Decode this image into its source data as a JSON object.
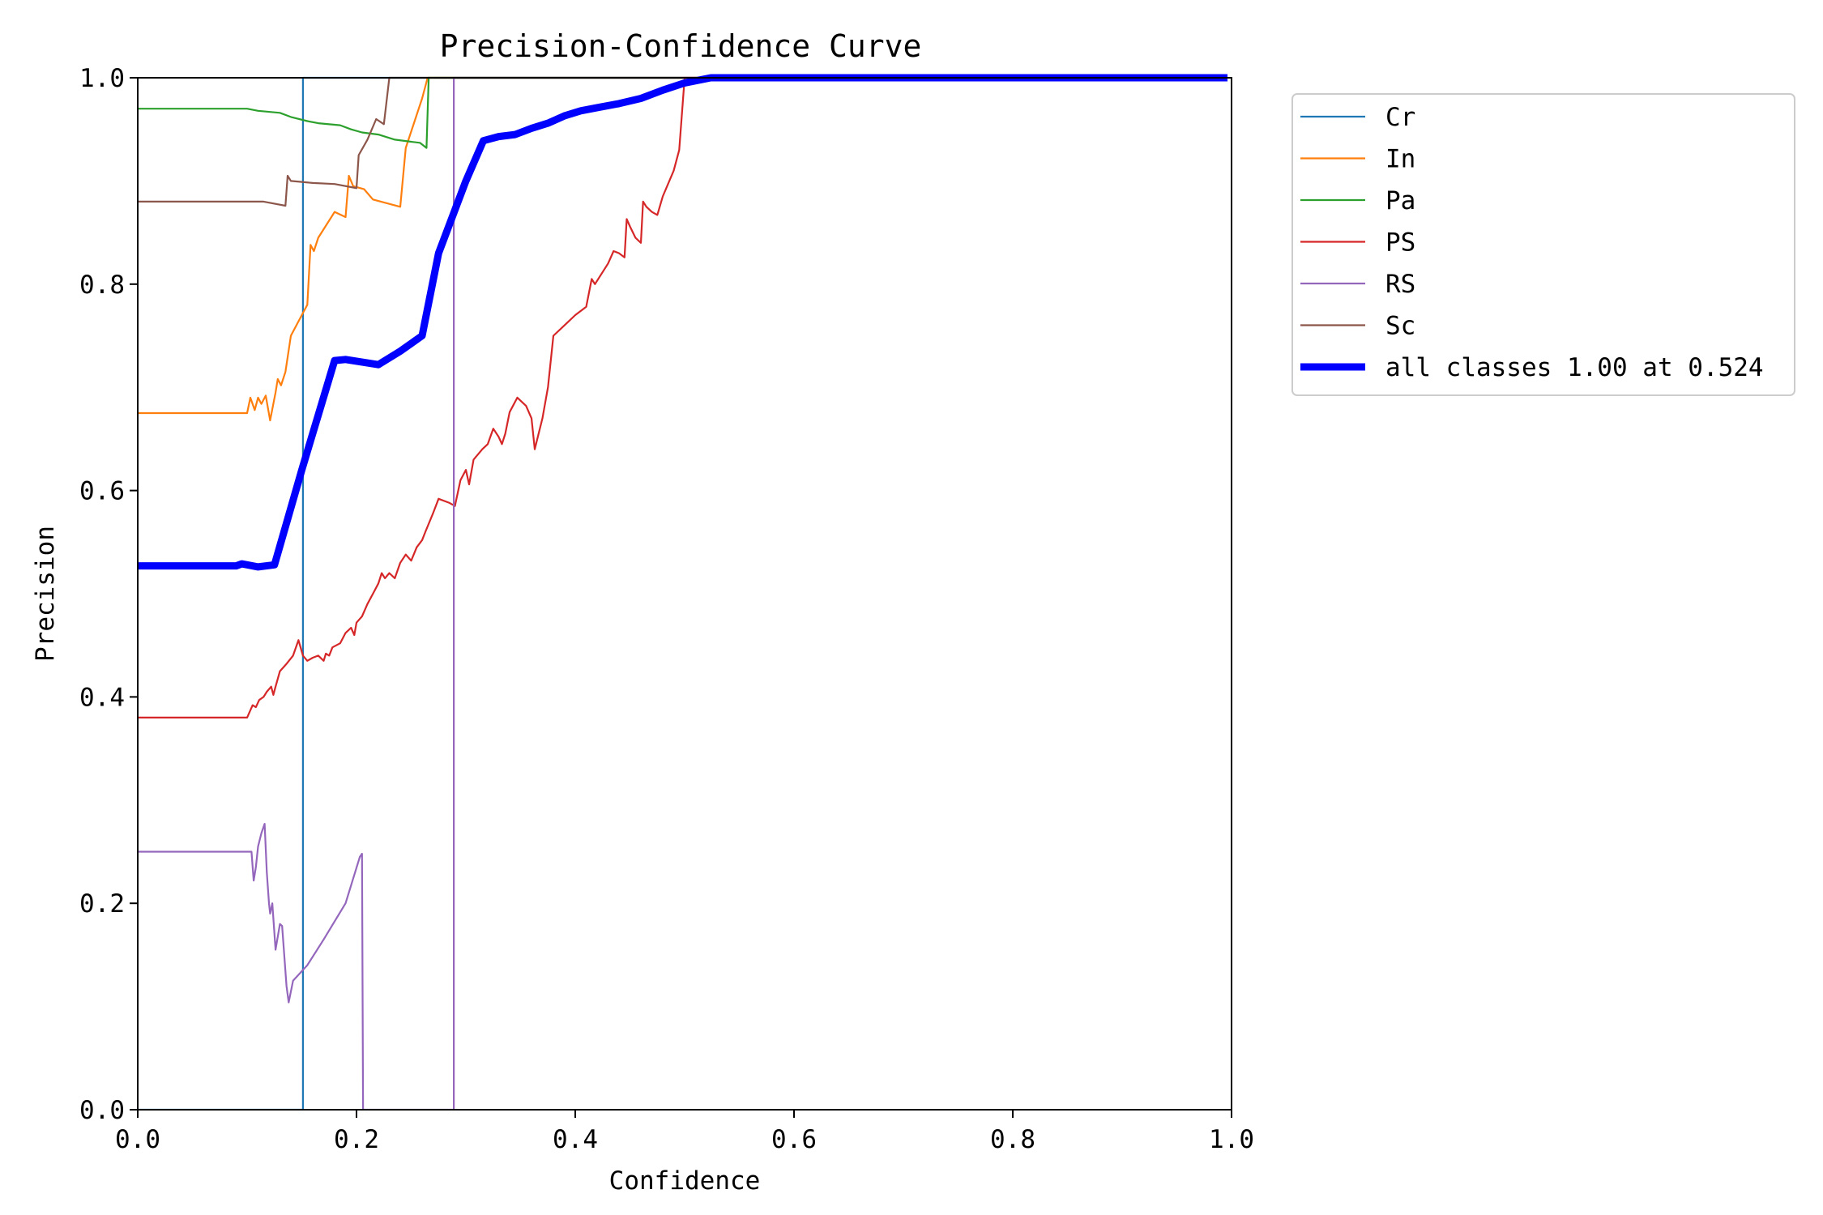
{
  "chart_data": {
    "type": "line",
    "title": "Precision-Confidence Curve",
    "xlabel": "Confidence",
    "ylabel": "Precision",
    "xlim": [
      0,
      1
    ],
    "ylim": [
      0,
      1
    ],
    "xticks": [
      "0.0",
      "0.2",
      "0.4",
      "0.6",
      "0.8",
      "1.0"
    ],
    "yticks": [
      "0.0",
      "0.2",
      "0.4",
      "0.6",
      "0.8",
      "1.0"
    ],
    "grid": false,
    "legend_position": "outside-top-right",
    "series": [
      {
        "name": "Cr",
        "color": "#1f77b4",
        "points": [
          [
            0.0,
            0.0
          ],
          [
            0.151,
            0.0
          ],
          [
            0.151,
            1.0
          ],
          [
            1.0,
            1.0
          ]
        ]
      },
      {
        "name": "In",
        "color": "#ff7f0e",
        "points": [
          [
            0.0,
            0.675
          ],
          [
            0.1,
            0.675
          ],
          [
            0.103,
            0.69
          ],
          [
            0.107,
            0.678
          ],
          [
            0.11,
            0.69
          ],
          [
            0.113,
            0.684
          ],
          [
            0.117,
            0.692
          ],
          [
            0.121,
            0.668
          ],
          [
            0.126,
            0.695
          ],
          [
            0.128,
            0.708
          ],
          [
            0.131,
            0.702
          ],
          [
            0.135,
            0.715
          ],
          [
            0.14,
            0.75
          ],
          [
            0.15,
            0.77
          ],
          [
            0.155,
            0.78
          ],
          [
            0.158,
            0.838
          ],
          [
            0.161,
            0.832
          ],
          [
            0.165,
            0.845
          ],
          [
            0.18,
            0.87
          ],
          [
            0.19,
            0.865
          ],
          [
            0.193,
            0.905
          ],
          [
            0.197,
            0.895
          ],
          [
            0.207,
            0.892
          ],
          [
            0.215,
            0.882
          ],
          [
            0.24,
            0.875
          ],
          [
            0.245,
            0.932
          ],
          [
            0.26,
            0.98
          ],
          [
            0.265,
            1.0
          ],
          [
            1.0,
            1.0
          ]
        ]
      },
      {
        "name": "Pa",
        "color": "#2ca02c",
        "points": [
          [
            0.0,
            0.97
          ],
          [
            0.1,
            0.97
          ],
          [
            0.11,
            0.968
          ],
          [
            0.13,
            0.966
          ],
          [
            0.14,
            0.962
          ],
          [
            0.155,
            0.958
          ],
          [
            0.165,
            0.956
          ],
          [
            0.185,
            0.954
          ],
          [
            0.195,
            0.95
          ],
          [
            0.205,
            0.947
          ],
          [
            0.22,
            0.945
          ],
          [
            0.235,
            0.94
          ],
          [
            0.25,
            0.938
          ],
          [
            0.258,
            0.937
          ],
          [
            0.264,
            0.932
          ],
          [
            0.266,
            1.0
          ],
          [
            1.0,
            1.0
          ]
        ]
      },
      {
        "name": "PS",
        "color": "#d62728",
        "points": [
          [
            0.0,
            0.38
          ],
          [
            0.1,
            0.38
          ],
          [
            0.105,
            0.392
          ],
          [
            0.108,
            0.39
          ],
          [
            0.111,
            0.397
          ],
          [
            0.115,
            0.4
          ],
          [
            0.118,
            0.405
          ],
          [
            0.122,
            0.41
          ],
          [
            0.124,
            0.402
          ],
          [
            0.126,
            0.41
          ],
          [
            0.13,
            0.425
          ],
          [
            0.136,
            0.432
          ],
          [
            0.142,
            0.44
          ],
          [
            0.147,
            0.455
          ],
          [
            0.151,
            0.44
          ],
          [
            0.155,
            0.435
          ],
          [
            0.16,
            0.438
          ],
          [
            0.165,
            0.44
          ],
          [
            0.17,
            0.435
          ],
          [
            0.172,
            0.442
          ],
          [
            0.175,
            0.44
          ],
          [
            0.178,
            0.448
          ],
          [
            0.185,
            0.452
          ],
          [
            0.19,
            0.462
          ],
          [
            0.195,
            0.467
          ],
          [
            0.198,
            0.46
          ],
          [
            0.2,
            0.472
          ],
          [
            0.205,
            0.478
          ],
          [
            0.21,
            0.49
          ],
          [
            0.215,
            0.5
          ],
          [
            0.22,
            0.51
          ],
          [
            0.223,
            0.52
          ],
          [
            0.226,
            0.515
          ],
          [
            0.23,
            0.52
          ],
          [
            0.235,
            0.515
          ],
          [
            0.24,
            0.53
          ],
          [
            0.245,
            0.538
          ],
          [
            0.25,
            0.532
          ],
          [
            0.255,
            0.545
          ],
          [
            0.26,
            0.552
          ],
          [
            0.263,
            0.56
          ],
          [
            0.27,
            0.578
          ],
          [
            0.275,
            0.592
          ],
          [
            0.285,
            0.588
          ],
          [
            0.29,
            0.585
          ],
          [
            0.295,
            0.61
          ],
          [
            0.3,
            0.62
          ],
          [
            0.303,
            0.606
          ],
          [
            0.307,
            0.63
          ],
          [
            0.315,
            0.64
          ],
          [
            0.32,
            0.645
          ],
          [
            0.325,
            0.66
          ],
          [
            0.33,
            0.652
          ],
          [
            0.333,
            0.645
          ],
          [
            0.336,
            0.655
          ],
          [
            0.34,
            0.676
          ],
          [
            0.347,
            0.69
          ],
          [
            0.355,
            0.682
          ],
          [
            0.36,
            0.67
          ],
          [
            0.363,
            0.64
          ],
          [
            0.37,
            0.67
          ],
          [
            0.375,
            0.7
          ],
          [
            0.38,
            0.75
          ],
          [
            0.39,
            0.76
          ],
          [
            0.4,
            0.77
          ],
          [
            0.41,
            0.778
          ],
          [
            0.415,
            0.805
          ],
          [
            0.418,
            0.8
          ],
          [
            0.43,
            0.82
          ],
          [
            0.435,
            0.832
          ],
          [
            0.44,
            0.83
          ],
          [
            0.445,
            0.826
          ],
          [
            0.447,
            0.863
          ],
          [
            0.45,
            0.856
          ],
          [
            0.455,
            0.845
          ],
          [
            0.46,
            0.84
          ],
          [
            0.462,
            0.88
          ],
          [
            0.465,
            0.875
          ],
          [
            0.47,
            0.87
          ],
          [
            0.475,
            0.867
          ],
          [
            0.48,
            0.885
          ],
          [
            0.49,
            0.91
          ],
          [
            0.495,
            0.93
          ],
          [
            0.5,
            1.0
          ],
          [
            1.0,
            1.0
          ]
        ]
      },
      {
        "name": "RS",
        "color": "#9467bd",
        "points": [
          [
            0.0,
            0.25
          ],
          [
            0.104,
            0.25
          ],
          [
            0.106,
            0.222
          ],
          [
            0.108,
            0.235
          ],
          [
            0.11,
            0.255
          ],
          [
            0.113,
            0.268
          ],
          [
            0.116,
            0.277
          ],
          [
            0.118,
            0.23
          ],
          [
            0.12,
            0.2
          ],
          [
            0.121,
            0.19
          ],
          [
            0.123,
            0.2
          ],
          [
            0.126,
            0.155
          ],
          [
            0.13,
            0.18
          ],
          [
            0.132,
            0.178
          ],
          [
            0.136,
            0.12
          ],
          [
            0.138,
            0.104
          ],
          [
            0.142,
            0.125
          ],
          [
            0.155,
            0.14
          ],
          [
            0.17,
            0.165
          ],
          [
            0.19,
            0.2
          ],
          [
            0.203,
            0.245
          ],
          [
            0.205,
            0.248
          ],
          [
            0.206,
            0.0
          ],
          [
            0.289,
            0.0
          ],
          [
            0.289,
            1.0
          ],
          [
            1.0,
            1.0
          ]
        ]
      },
      {
        "name": "Sc",
        "color": "#8c564b",
        "points": [
          [
            0.0,
            0.88
          ],
          [
            0.115,
            0.88
          ],
          [
            0.135,
            0.876
          ],
          [
            0.137,
            0.905
          ],
          [
            0.14,
            0.9
          ],
          [
            0.16,
            0.898
          ],
          [
            0.18,
            0.897
          ],
          [
            0.195,
            0.894
          ],
          [
            0.2,
            0.893
          ],
          [
            0.202,
            0.925
          ],
          [
            0.21,
            0.94
          ],
          [
            0.218,
            0.96
          ],
          [
            0.225,
            0.955
          ],
          [
            0.23,
            1.0
          ],
          [
            1.0,
            1.0
          ]
        ]
      },
      {
        "name": "all classes 1.00 at 0.524",
        "color": "#0000ff",
        "bold": true,
        "points": [
          [
            0.0,
            0.527
          ],
          [
            0.09,
            0.527
          ],
          [
            0.095,
            0.529
          ],
          [
            0.1,
            0.528
          ],
          [
            0.11,
            0.526
          ],
          [
            0.125,
            0.528
          ],
          [
            0.15,
            0.62
          ],
          [
            0.18,
            0.726
          ],
          [
            0.19,
            0.727
          ],
          [
            0.22,
            0.722
          ],
          [
            0.24,
            0.735
          ],
          [
            0.26,
            0.75
          ],
          [
            0.275,
            0.83
          ],
          [
            0.3,
            0.9
          ],
          [
            0.316,
            0.939
          ],
          [
            0.33,
            0.943
          ],
          [
            0.345,
            0.945
          ],
          [
            0.36,
            0.951
          ],
          [
            0.375,
            0.956
          ],
          [
            0.39,
            0.963
          ],
          [
            0.405,
            0.968
          ],
          [
            0.42,
            0.971
          ],
          [
            0.44,
            0.975
          ],
          [
            0.46,
            0.98
          ],
          [
            0.48,
            0.988
          ],
          [
            0.5,
            0.995
          ],
          [
            0.524,
            1.0
          ],
          [
            1.0,
            1.0
          ]
        ]
      }
    ]
  }
}
